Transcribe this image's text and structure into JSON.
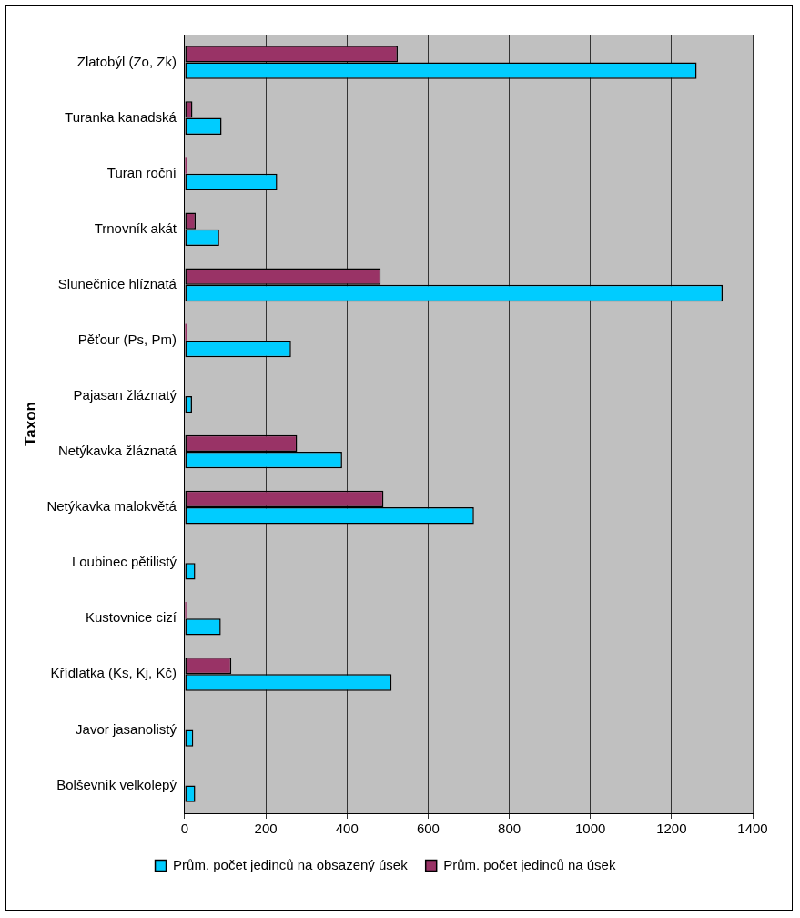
{
  "chart_data": {
    "type": "bar",
    "orientation": "horizontal",
    "ylabel": "Taxon",
    "categories": [
      "Zlatobýl (Zo, Zk)",
      "Turanka kanadská",
      "Turan roční",
      "Trnovník akát",
      "Slunečnice hlíznatá",
      "Pěťour (Ps, Pm)",
      "Pajasan žláznatý",
      "Netýkavka žláznatá",
      "Netýkavka malokvětá",
      "Loubinec pětilistý",
      "Kustovnice cizí",
      "Křídlatka (Ks, Kj, Kč)",
      "Javor jasanolistý",
      "Bolševník velkolepý"
    ],
    "series": [
      {
        "name": "Prům. počet jedinců na obsazený úsek",
        "color": "#00ccff",
        "values": [
          1262,
          91,
          228,
          85,
          1326,
          262,
          18,
          388,
          713,
          26,
          89,
          510,
          21,
          26
        ]
      },
      {
        "name": "Prům. počet jedinců na úsek",
        "color": "#993366",
        "values": [
          525,
          19,
          6,
          27,
          483,
          6,
          0,
          277,
          490,
          0,
          4,
          115,
          0,
          0
        ]
      }
    ],
    "xlim": [
      0,
      1400
    ],
    "xticks": [
      0,
      200,
      400,
      600,
      800,
      1000,
      1200,
      1400
    ],
    "grid": "x",
    "legend": "bottom"
  }
}
